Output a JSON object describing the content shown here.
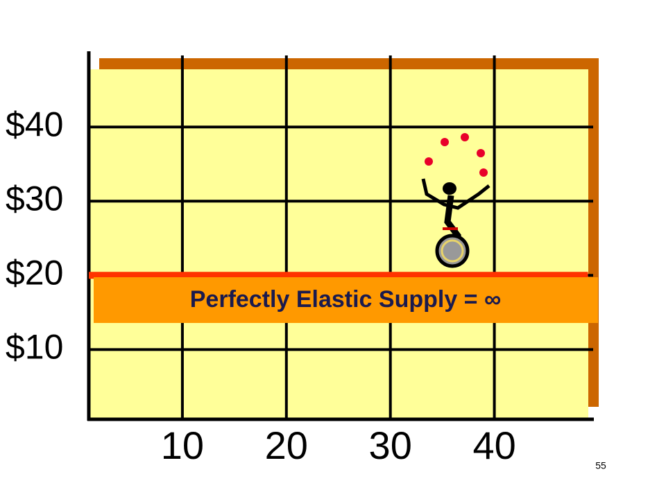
{
  "chart_data": {
    "type": "line",
    "annotation": "Perfectly Elastic Supply = ∞",
    "x": [
      1,
      49
    ],
    "series": [
      {
        "name": "Perfectly Elastic Supply",
        "color": "#ff3300",
        "values": [
          20,
          20
        ]
      }
    ],
    "xlim": [
      1,
      49.5
    ],
    "xticks": [
      10,
      20,
      30,
      40
    ],
    "ylim": [
      0.6,
      50.2
    ],
    "yticks": [
      {
        "value": 10,
        "label": "$10"
      },
      {
        "value": 20,
        "label": "$20"
      },
      {
        "value": 30,
        "label": "$30"
      },
      {
        "value": 40,
        "label": "$40"
      }
    ],
    "grid": true
  },
  "slide": {
    "number": "55"
  }
}
